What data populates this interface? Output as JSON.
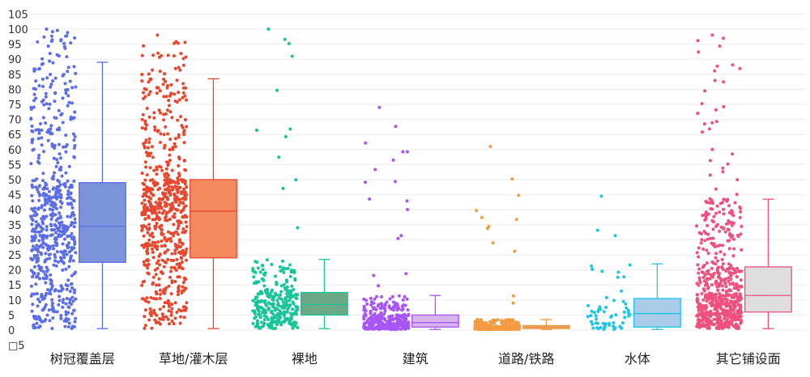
{
  "chart_data": {
    "type": "box",
    "title": "",
    "xlabel": "",
    "ylabel": "",
    "ylim": [
      -5,
      105
    ],
    "yticks": [
      105,
      100,
      95,
      90,
      85,
      80,
      75,
      70,
      65,
      60,
      55,
      50,
      45,
      40,
      35,
      30,
      25,
      20,
      15,
      10,
      5,
      0,
      "□5"
    ],
    "grid": true,
    "legend": "none",
    "categories": [
      "树冠覆盖层",
      "草地/灌木层",
      "裸地",
      "建筑",
      "道路/铁路",
      "水体",
      "其它铺设面"
    ],
    "boxes": [
      {
        "category": "树冠覆盖层",
        "min": 0.5,
        "q1": 22.5,
        "median": 34.5,
        "q3": 49,
        "max": 89,
        "color": "#5b6ee8",
        "fill": "#7b93d8",
        "points_max": 100,
        "points_count": 650
      },
      {
        "category": "草地/灌木层",
        "min": 0.5,
        "q1": 24,
        "median": 39.5,
        "q3": 50,
        "max": 83.5,
        "color": "#e8472e",
        "fill": "#f48a5e",
        "points_max": 98,
        "points_count": 650
      },
      {
        "category": "裸地",
        "min": 0.5,
        "q1": 5,
        "median": 8.5,
        "q3": 12.5,
        "max": 23.5,
        "color": "#18c59a",
        "fill": "#6aa886",
        "points_max": 100,
        "points_count": 300
      },
      {
        "category": "建筑",
        "min": 0.2,
        "q1": 1,
        "median": 2.5,
        "q3": 5,
        "max": 11.5,
        "color": "#a855f7",
        "fill": "#d7b3f2",
        "points_max": 74,
        "points_count": 350
      },
      {
        "category": "道路/铁路",
        "min": 0.2,
        "q1": 0.5,
        "median": 1,
        "q3": 1.5,
        "max": 3.5,
        "color": "#f59a40",
        "fill": "#d2a36c",
        "points_max": 61,
        "points_count": 330
      },
      {
        "category": "水体",
        "min": 0.2,
        "q1": 1,
        "median": 5.5,
        "q3": 10.5,
        "max": 22,
        "color": "#1ec6e6",
        "fill": "#a9cce8",
        "points_max": 44.5,
        "points_count": 60
      },
      {
        "category": "其它铺设面",
        "min": 0.5,
        "q1": 6,
        "median": 11.5,
        "q3": 21,
        "max": 43.5,
        "color": "#f0507e",
        "fill": "#dedede",
        "points_max": 98,
        "points_count": 600
      }
    ]
  }
}
